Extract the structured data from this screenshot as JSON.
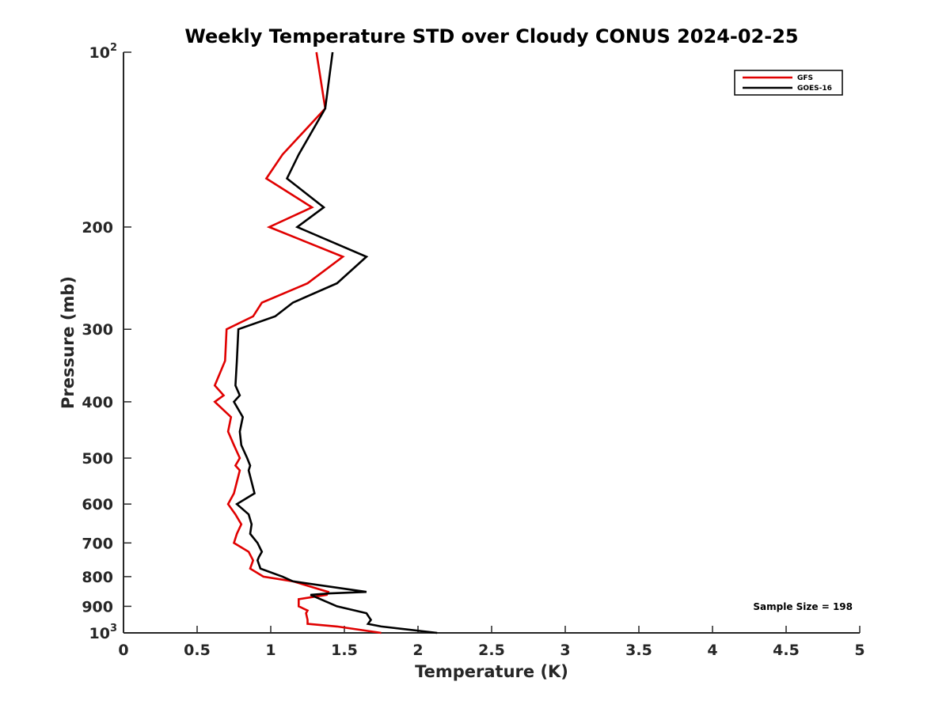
{
  "chart_data": {
    "type": "line",
    "title": "Weekly Temperature STD over Cloudy CONUS 2024-02-25",
    "xlabel": "Temperature (K)",
    "ylabel": "Pressure (mb)",
    "xlim": [
      0,
      5
    ],
    "ylim": [
      100,
      1000
    ],
    "yscale": "log",
    "yreversed": true,
    "grid": false,
    "legend_location": "top-right",
    "x_ticks": [
      0,
      0.5,
      1,
      1.5,
      2,
      2.5,
      3,
      3.5,
      4,
      4.5,
      5
    ],
    "x_tick_labels": [
      "0",
      "0.5",
      "1",
      "1.5",
      "2",
      "2.5",
      "3",
      "3.5",
      "4",
      "4.5",
      "5"
    ],
    "y_ticks": [
      200,
      300,
      400,
      500,
      600,
      700,
      800,
      900
    ],
    "y_tick_labels": [
      "200",
      "300",
      "400",
      "500",
      "600",
      "700",
      "800",
      "900"
    ],
    "y_limit_labels": [
      {
        "value": 100,
        "base": "10",
        "exp": "2"
      },
      {
        "value": 1000,
        "base": "10",
        "exp": "3"
      }
    ],
    "annotation": "Sample Size = 198",
    "series": [
      {
        "name": "GFS",
        "color": "#e00000",
        "points": [
          [
            1.31,
            100
          ],
          [
            1.37,
            125
          ],
          [
            1.08,
            150
          ],
          [
            0.97,
            165
          ],
          [
            1.28,
            185
          ],
          [
            0.99,
            200
          ],
          [
            1.49,
            225
          ],
          [
            1.25,
            250
          ],
          [
            0.94,
            270
          ],
          [
            0.88,
            285
          ],
          [
            0.7,
            300
          ],
          [
            0.69,
            340
          ],
          [
            0.62,
            375
          ],
          [
            0.68,
            390
          ],
          [
            0.62,
            400
          ],
          [
            0.73,
            425
          ],
          [
            0.71,
            450
          ],
          [
            0.75,
            475
          ],
          [
            0.79,
            500
          ],
          [
            0.76,
            515
          ],
          [
            0.79,
            525
          ],
          [
            0.75,
            575
          ],
          [
            0.71,
            600
          ],
          [
            0.76,
            625
          ],
          [
            0.8,
            650
          ],
          [
            0.77,
            675
          ],
          [
            0.75,
            700
          ],
          [
            0.85,
            725
          ],
          [
            0.88,
            750
          ],
          [
            0.86,
            775
          ],
          [
            0.95,
            800
          ],
          [
            1.15,
            815
          ],
          [
            1.39,
            850
          ],
          [
            1.38,
            860
          ],
          [
            1.19,
            875
          ],
          [
            1.19,
            900
          ],
          [
            1.25,
            915
          ],
          [
            1.24,
            925
          ],
          [
            1.25,
            950
          ],
          [
            1.25,
            965
          ],
          [
            1.45,
            975
          ],
          [
            1.75,
            1000
          ]
        ]
      },
      {
        "name": "GOES-16",
        "color": "#000000",
        "points": [
          [
            1.42,
            100
          ],
          [
            1.37,
            125
          ],
          [
            1.19,
            150
          ],
          [
            1.11,
            165
          ],
          [
            1.36,
            185
          ],
          [
            1.18,
            200
          ],
          [
            1.65,
            225
          ],
          [
            1.45,
            250
          ],
          [
            1.15,
            270
          ],
          [
            1.03,
            285
          ],
          [
            0.78,
            300
          ],
          [
            0.77,
            340
          ],
          [
            0.76,
            375
          ],
          [
            0.79,
            390
          ],
          [
            0.75,
            400
          ],
          [
            0.81,
            425
          ],
          [
            0.79,
            450
          ],
          [
            0.8,
            475
          ],
          [
            0.84,
            500
          ],
          [
            0.86,
            515
          ],
          [
            0.85,
            525
          ],
          [
            0.89,
            575
          ],
          [
            0.77,
            600
          ],
          [
            0.85,
            625
          ],
          [
            0.87,
            650
          ],
          [
            0.86,
            675
          ],
          [
            0.91,
            700
          ],
          [
            0.94,
            725
          ],
          [
            0.92,
            740
          ],
          [
            0.91,
            750
          ],
          [
            0.93,
            775
          ],
          [
            1.08,
            800
          ],
          [
            1.15,
            815
          ],
          [
            1.65,
            850
          ],
          [
            1.4,
            855
          ],
          [
            1.27,
            860
          ],
          [
            1.45,
            900
          ],
          [
            1.65,
            925
          ],
          [
            1.68,
            950
          ],
          [
            1.66,
            965
          ],
          [
            1.75,
            975
          ],
          [
            2.13,
            1000
          ]
        ]
      }
    ]
  }
}
